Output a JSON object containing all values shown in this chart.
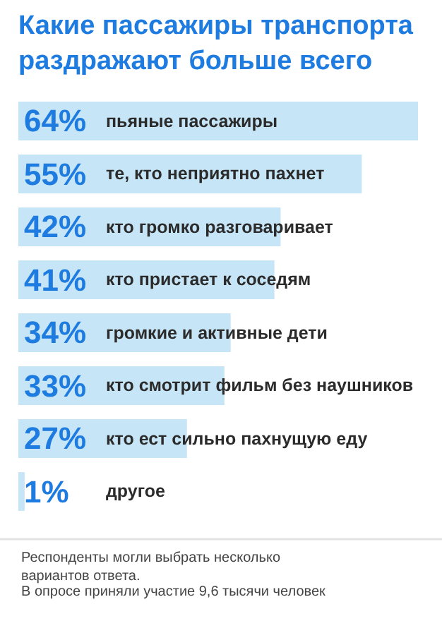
{
  "chart_data": {
    "type": "bar",
    "orientation": "horizontal",
    "title": "Какие пассажиры транспорта раздражают больше всего",
    "categories": [
      "пьяные пассажиры",
      "те, кто неприятно пахнет",
      "кто громко разговаривает",
      "кто пристает к соседям",
      "громкие и активные дети",
      "кто смотрит фильм без наушников",
      "кто ест сильно пахнущую еду",
      "другое"
    ],
    "values": [
      64,
      55,
      42,
      41,
      34,
      33,
      27,
      1
    ],
    "value_labels": [
      "64%",
      "55%",
      "42%",
      "41%",
      "34%",
      "33%",
      "27%",
      "1%"
    ],
    "color": "#c6e5f6",
    "annotations": [
      "Респонденты могли выбрать несколько вариантов ответа.",
      "В опросе приняли участие 9,6 тысячи человек"
    ]
  }
}
